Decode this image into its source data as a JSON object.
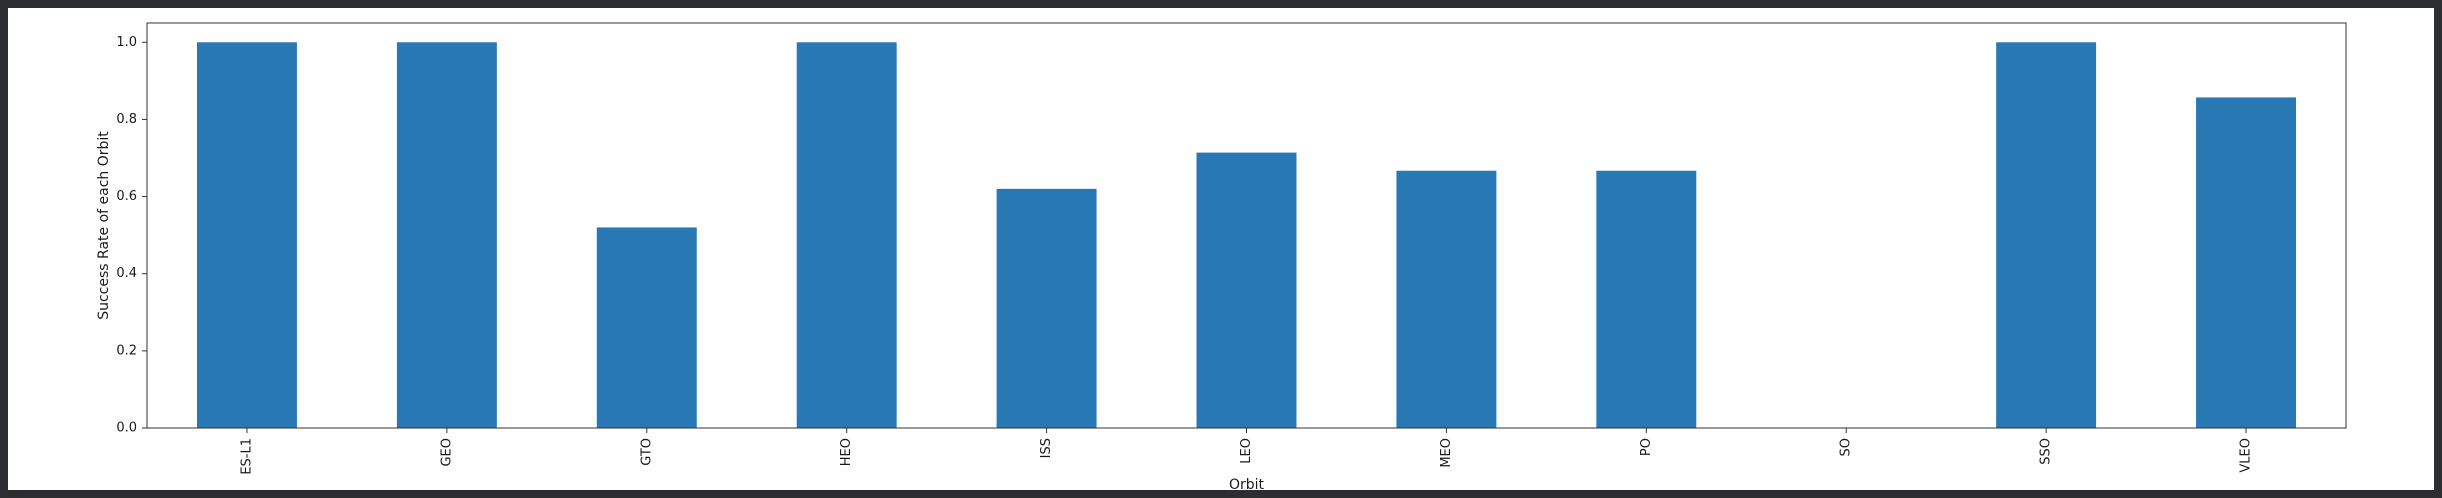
{
  "chart_data": {
    "type": "bar",
    "categories": [
      "ES-L1",
      "GEO",
      "GTO",
      "HEO",
      "ISS",
      "LEO",
      "MEO",
      "PO",
      "SO",
      "SSO",
      "VLEO"
    ],
    "values": [
      1.0,
      1.0,
      0.52,
      1.0,
      0.62,
      0.714,
      0.667,
      0.667,
      0.0,
      1.0,
      0.857
    ],
    "ylabel": "Success Rate of each Orbit",
    "xlabel": "Orbit",
    "ylim": [
      0,
      1.05
    ],
    "yticks": [
      "0.0",
      "0.2",
      "0.4",
      "0.6",
      "0.8",
      "1.0"
    ],
    "bar_color": "#2878b4",
    "grid": false,
    "legend": "none"
  }
}
